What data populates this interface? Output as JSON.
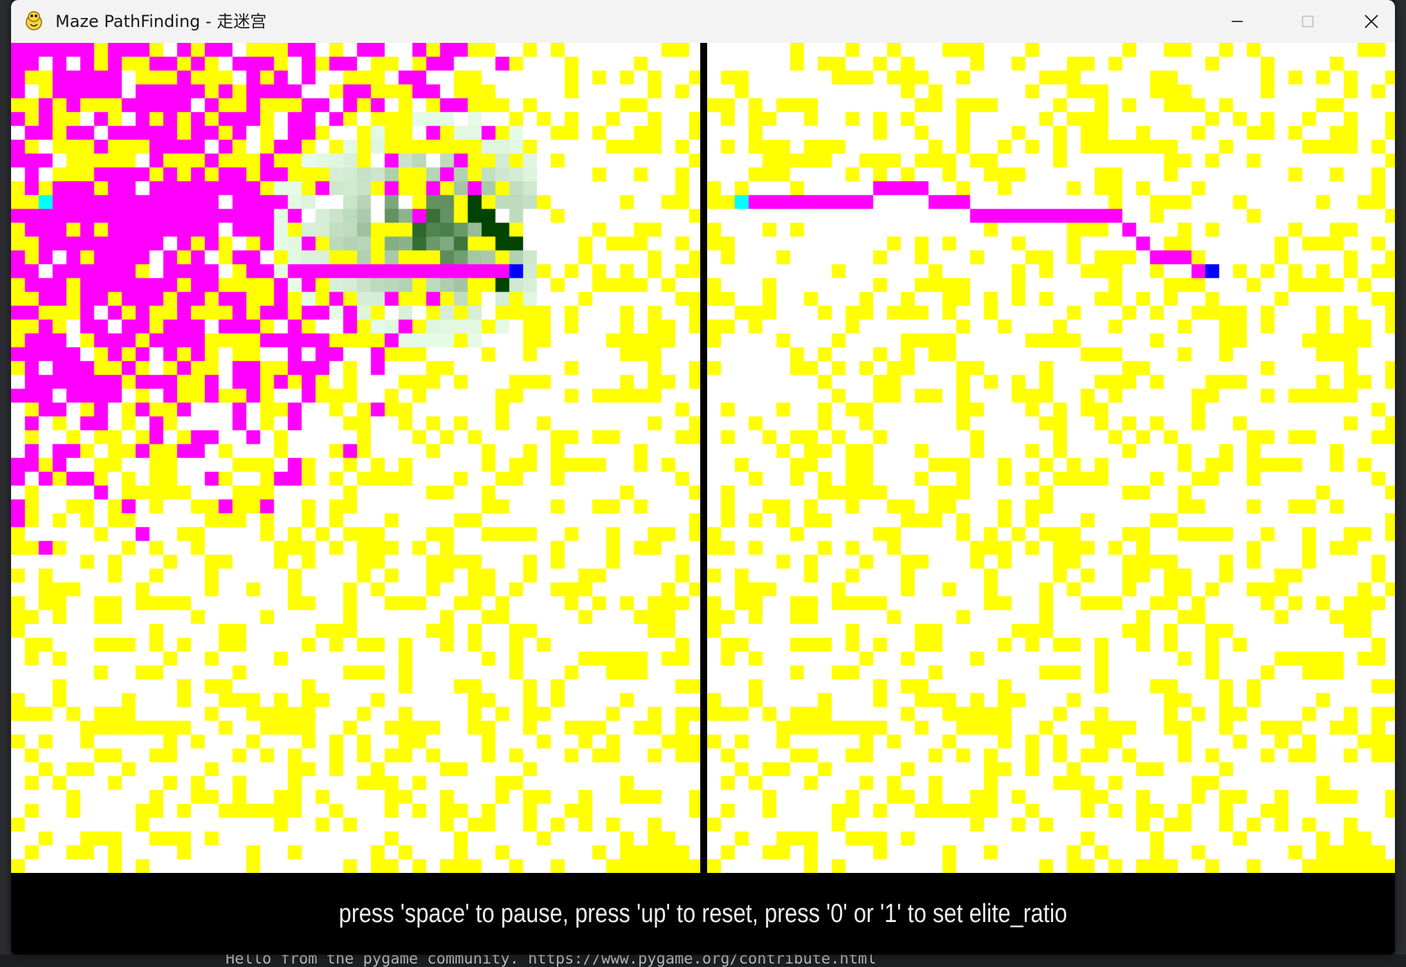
{
  "window": {
    "title": "Maze PathFinding - 走迷宫",
    "icon": "pygame-snake-icon",
    "controls": {
      "minimize": "minimize-icon",
      "maximize": "maximize-icon",
      "close": "close-icon"
    }
  },
  "colors": {
    "background": "#ffffff",
    "wall": "#ffff00",
    "visited": "#ff00ff",
    "path": "#ff00ff",
    "start": "#00ffff",
    "goal": "#0000ff",
    "pheromone_light": "#e6fbe6",
    "pheromone_dark": "#004400",
    "divider": "#000000",
    "status_bar": "#000000"
  },
  "panels": [
    {
      "name": "left-maze",
      "description": "ant colony exploration with pheromone trail",
      "start_cell": [
        2,
        11
      ],
      "goal_cell": [
        36,
        16
      ]
    },
    {
      "name": "right-maze",
      "description": "best path found",
      "start_cell": [
        2,
        11
      ],
      "goal_cell": [
        36,
        16
      ]
    }
  ],
  "status": {
    "text": "press 'space' to pause, press 'up' to reset, press '0' or '1' to set elite_ratio"
  },
  "background_terminal": {
    "text": "Hello from the pygame community. https://www.pygame.org/contribute.html"
  }
}
